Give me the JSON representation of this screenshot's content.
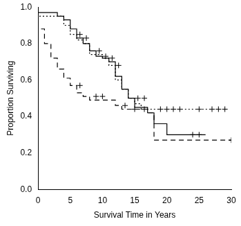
{
  "chart_data": {
    "type": "line",
    "x_label": "Survival Time in Years",
    "y_label": "Proportion Surviving",
    "xlim": [
      0,
      30
    ],
    "xticks": [
      0,
      5,
      10,
      15,
      20,
      25,
      30
    ],
    "ylim": [
      0,
      1
    ],
    "yticks": [
      {
        "value": 0,
        "label": "0.0"
      },
      {
        "value": 0.2,
        "label": "0.2"
      },
      {
        "value": 0.4,
        "label": "0.4"
      },
      {
        "value": 0.6,
        "label": "0.6"
      },
      {
        "value": 0.8,
        "label": "0.8"
      },
      {
        "value": 1,
        "label": "1.0"
      }
    ],
    "grid": false,
    "series": [
      {
        "color": "#000000",
        "line_style": "solid",
        "marker": "cross",
        "x": [
          0,
          3,
          4,
          5,
          6,
          7,
          8,
          9,
          10,
          11,
          12,
          13,
          14,
          15,
          17,
          18,
          20,
          23,
          26
        ],
        "values": [
          1,
          0.97,
          0.95,
          0.93,
          0.88,
          0.83,
          0.8,
          0.76,
          0.73,
          0.72,
          0.7,
          0.62,
          0.55,
          0.5,
          0.45,
          0.42,
          0.36,
          0.3,
          0.3
        ],
        "censored": {
          "x": [
            7.5,
            9.5,
            10.5,
            11.5,
            15.5,
            16.5,
            24,
            25
          ],
          "values": [
            0.83,
            0.76,
            0.73,
            0.72,
            0.5,
            0.5,
            0.3,
            0.3
          ]
        }
      },
      {
        "color": "#000000",
        "line_style": "dotted",
        "marker": "cross",
        "x": [
          0,
          4,
          5,
          6,
          7,
          8,
          10,
          11,
          12,
          13,
          14,
          15,
          16,
          17,
          18,
          29
        ],
        "values": [
          1,
          0.95,
          0.9,
          0.85,
          0.82,
          0.8,
          0.74,
          0.72,
          0.68,
          0.6,
          0.55,
          0.5,
          0.47,
          0.44,
          0.44,
          0.44
        ],
        "censored": {
          "x": [
            6.5,
            12.5,
            19,
            20,
            21,
            22,
            25,
            27,
            28,
            29
          ],
          "values": [
            0.85,
            0.68,
            0.44,
            0.44,
            0.44,
            0.44,
            0.44,
            0.44,
            0.44,
            0.44
          ]
        }
      },
      {
        "color": "#000000",
        "line_style": "dashed",
        "marker": "cross",
        "x": [
          0,
          1,
          2,
          3,
          4,
          5,
          6,
          7,
          8,
          12,
          13,
          17,
          18,
          20,
          30
        ],
        "values": [
          1,
          0.88,
          0.8,
          0.72,
          0.66,
          0.61,
          0.57,
          0.53,
          0.51,
          0.49,
          0.46,
          0.44,
          0.42,
          0.27,
          0.27
        ],
        "censored": {
          "x": [
            6.5,
            9,
            10,
            13.5,
            15,
            16.5,
            30
          ],
          "values": [
            0.57,
            0.51,
            0.51,
            0.46,
            0.44,
            0.44,
            0.27
          ]
        }
      }
    ]
  }
}
